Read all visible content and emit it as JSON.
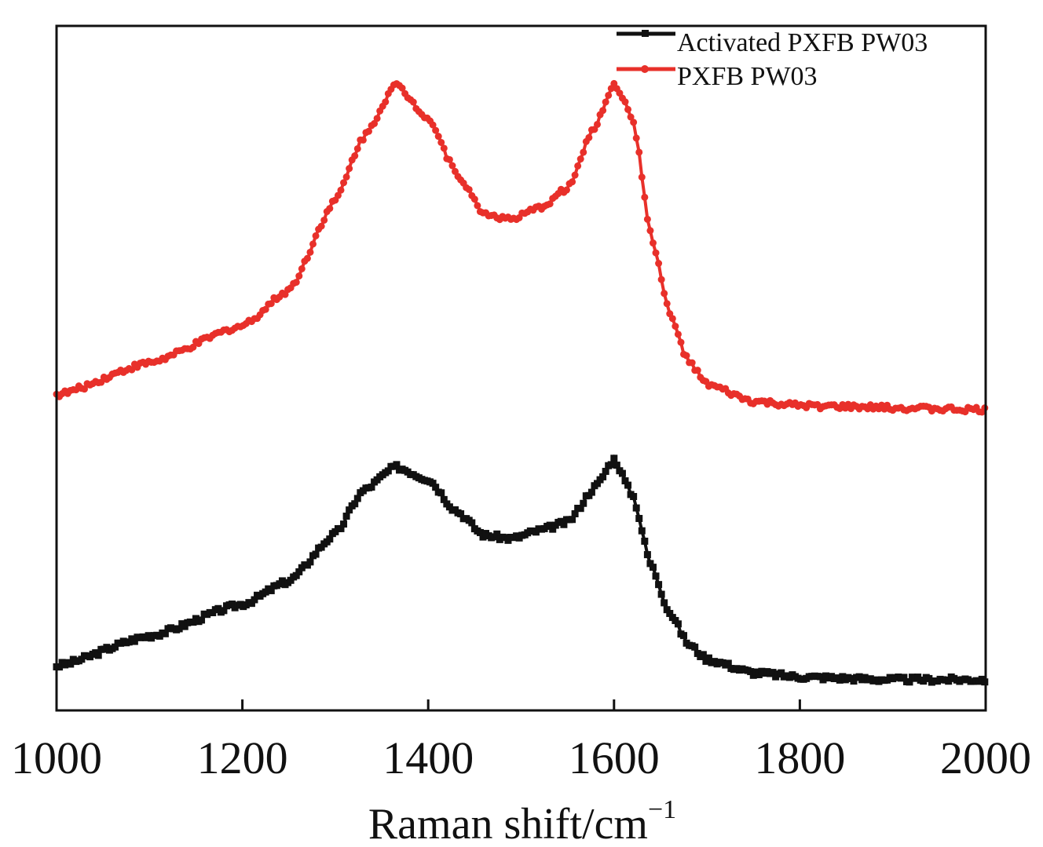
{
  "chart_data": {
    "type": "line",
    "title": "",
    "xlabel": "Raman shift/cm",
    "xlabel_superscript": "−1",
    "ylabel": "",
    "xlim": [
      1000,
      2000
    ],
    "ylim": [
      0,
      100
    ],
    "y_units": "arbitrary intensity (no y tick labels shown)",
    "xticks": [
      1000,
      1200,
      1400,
      1600,
      1800,
      2000
    ],
    "xtick_labels": [
      "1000",
      "1200",
      "1400",
      "1600",
      "1800",
      "2000"
    ],
    "grid": false,
    "legend_placement": "top-right",
    "x": [
      1000,
      1100,
      1200,
      1250,
      1300,
      1330,
      1365,
      1400,
      1430,
      1460,
      1490,
      1520,
      1550,
      1580,
      1600,
      1620,
      1640,
      1660,
      1680,
      1700,
      1750,
      1800,
      1900,
      2000
    ],
    "series": [
      {
        "name": "Activated PXFB PW03",
        "color": "#111111",
        "marker": "square",
        "values": [
          6.5,
          10.9,
          15.5,
          18.9,
          25.8,
          32.1,
          35.6,
          33.8,
          29.2,
          25.6,
          25.1,
          26.3,
          27.5,
          32.7,
          36.7,
          31.5,
          21.2,
          14.3,
          9.7,
          7.5,
          5.5,
          4.9,
          4.5,
          4.5
        ]
      },
      {
        "name": "PXFB PW03",
        "color": "#e8302a",
        "marker": "circle",
        "values": [
          46.1,
          50.8,
          56.2,
          61.4,
          74.5,
          83.7,
          91.4,
          86.6,
          78.6,
          72.6,
          71.7,
          73.4,
          76.3,
          85.4,
          91.7,
          86.6,
          69.4,
          57.9,
          51.0,
          47.6,
          45.1,
          44.5,
          44.2,
          43.9
        ]
      }
    ]
  }
}
